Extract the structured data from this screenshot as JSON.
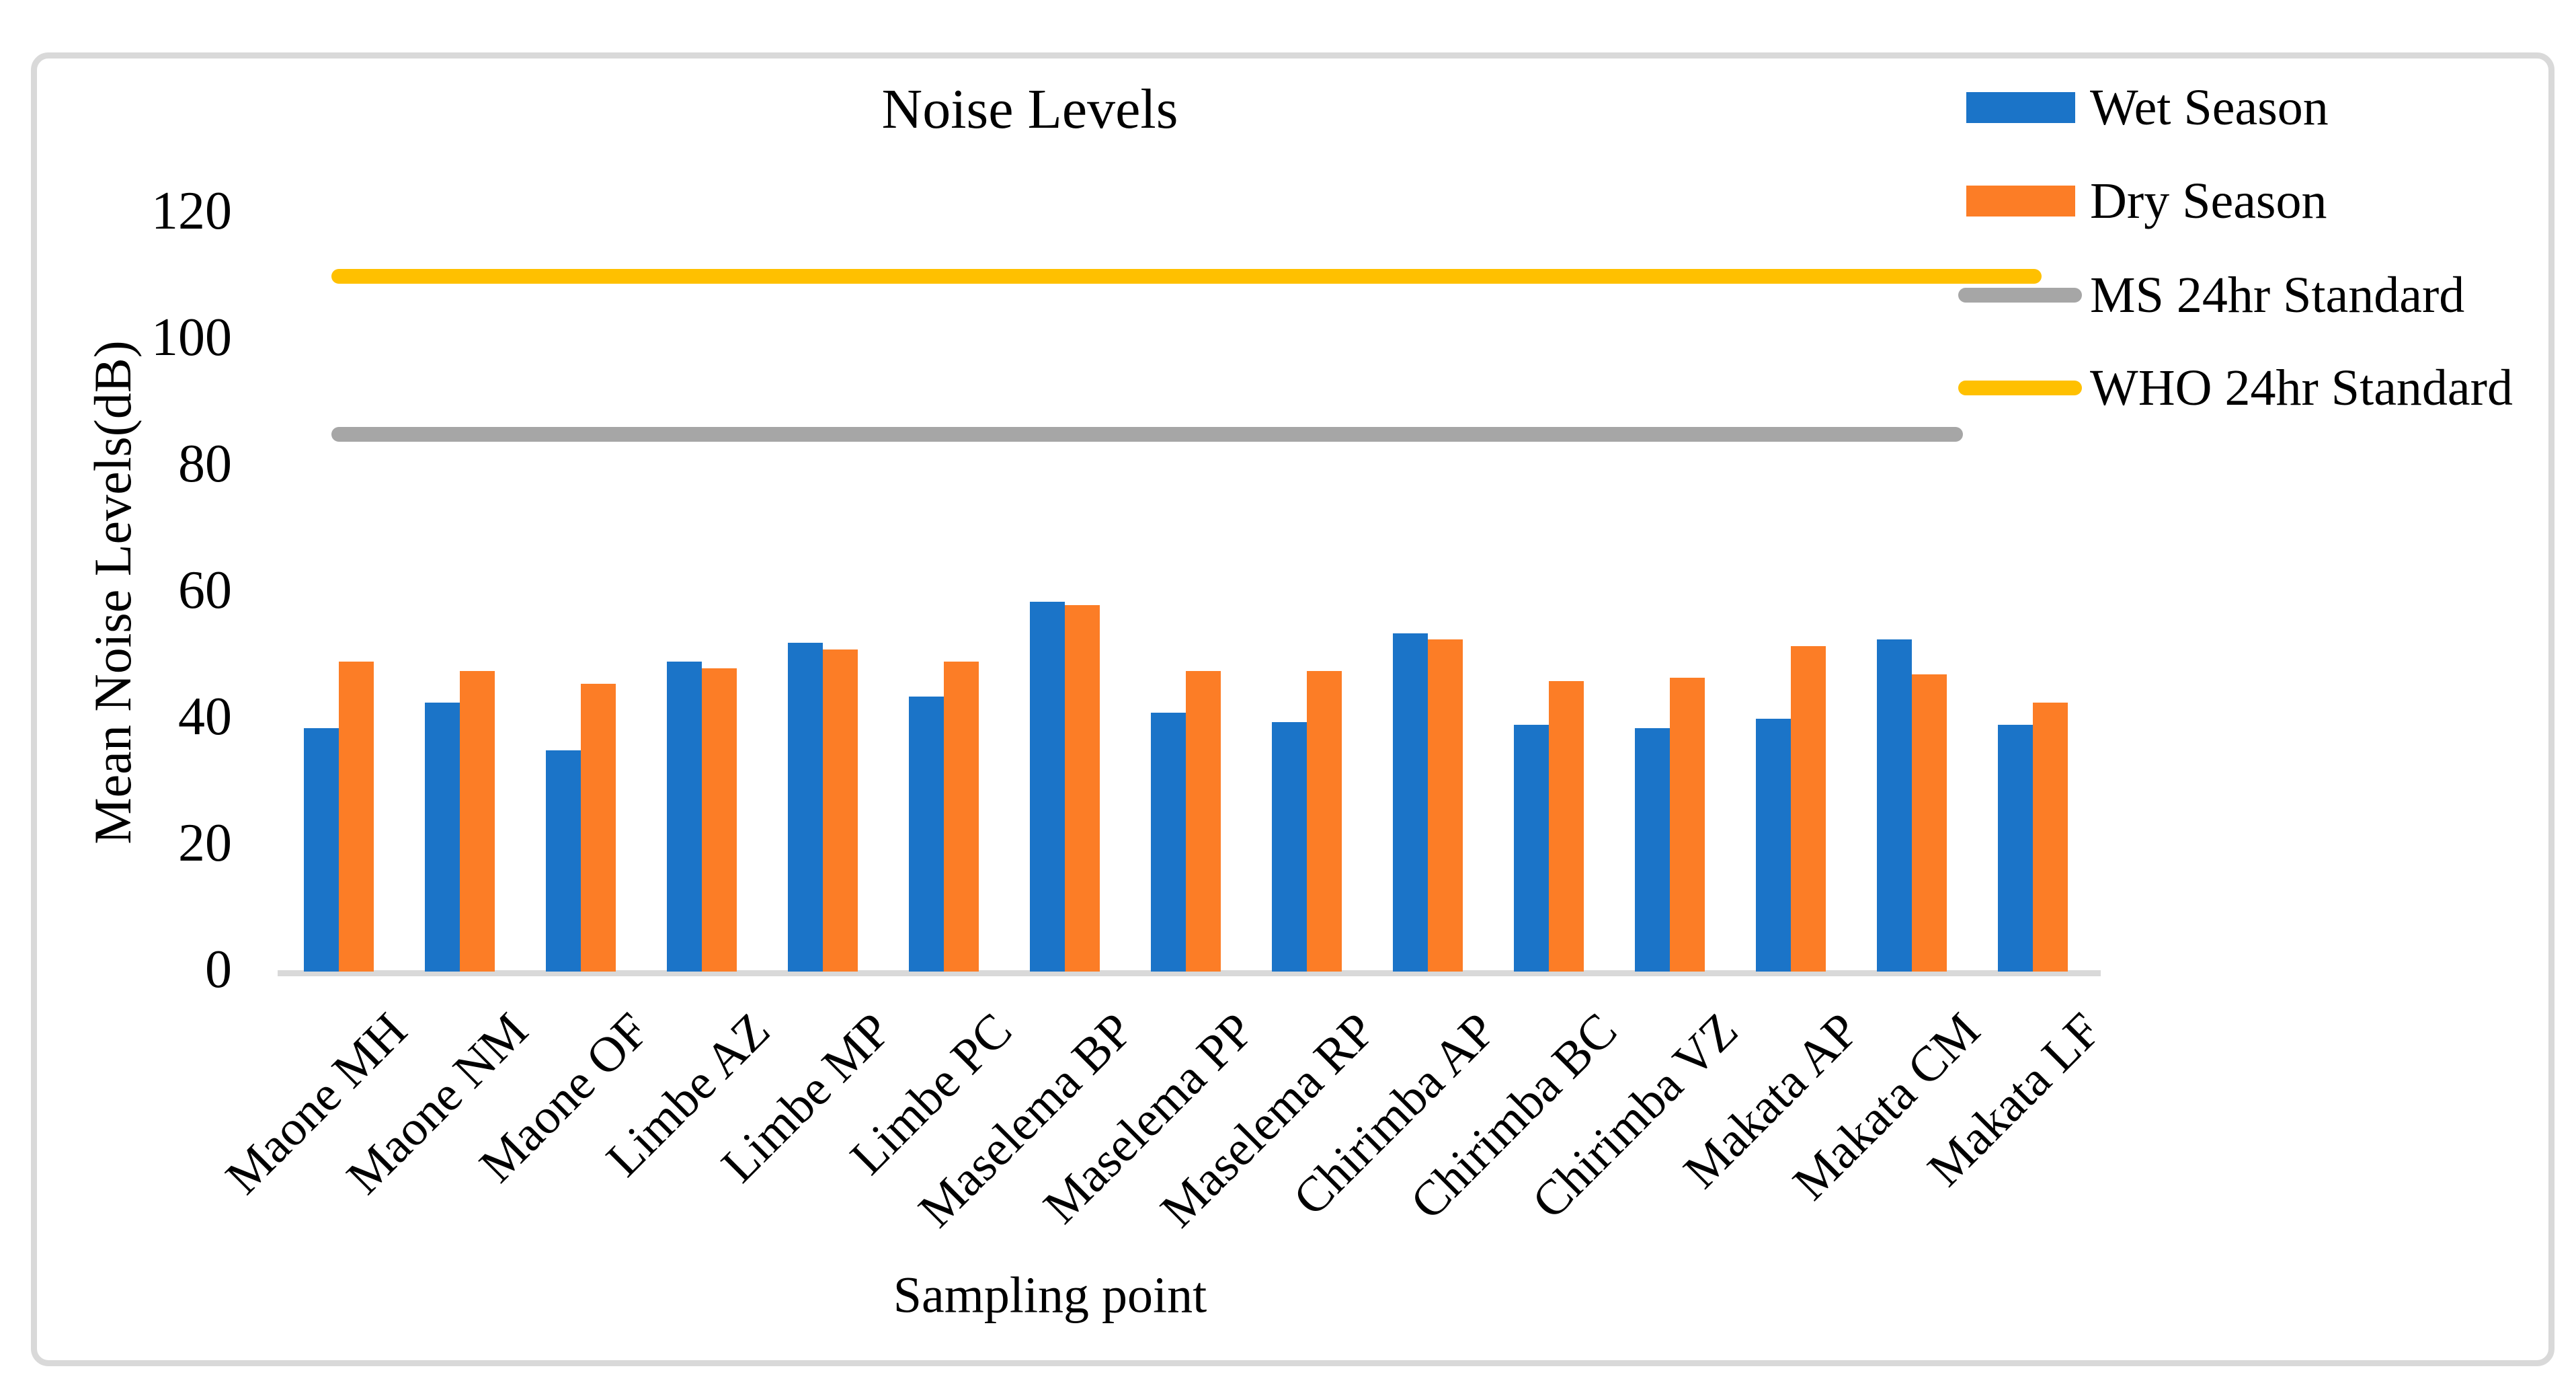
{
  "colors": {
    "wet_season": "#1B74C8",
    "dry_season": "#FC7D26",
    "ms_standard": "#A6A6A6",
    "who_standard": "#FFC000",
    "axis_line": "#D9D9D9",
    "frame_border": "#D9D9D9",
    "text": "#000000",
    "background": "#FFFFFF"
  },
  "chart_data": {
    "type": "bar",
    "title": "Noise Levels",
    "xlabel": "Sampling point",
    "ylabel": "Mean Noise Levels(dB)",
    "ylim": [
      0,
      120
    ],
    "yticks": [
      0,
      20,
      40,
      60,
      80,
      100,
      120
    ],
    "grid": false,
    "legend_position": "top-right",
    "categories": [
      "Maone MH",
      "Maone NM",
      "Maone OF",
      "Limbe AZ",
      "Limbe MP",
      "Limbe PC",
      "Maselema BP",
      "Maselema PP",
      "Maselema RP",
      "Chirimba AP",
      "Chirimba BC",
      "Chirimba VZ",
      "Makata AP",
      "Makata CM",
      "Makata LF"
    ],
    "series": [
      {
        "name": "Wet Season",
        "kind": "bar",
        "color": "#1B74C8",
        "values": [
          38.5,
          42.5,
          35,
          49,
          52,
          43.5,
          58.5,
          41,
          39.5,
          53.5,
          39,
          38.5,
          40,
          52.5,
          39
        ]
      },
      {
        "name": "Dry Season",
        "kind": "bar",
        "color": "#FC7D26",
        "values": [
          49,
          47.5,
          45.5,
          48,
          51,
          49,
          58,
          47.5,
          47.5,
          52.5,
          46,
          46.5,
          51.5,
          47,
          42.5
        ]
      },
      {
        "name": "MS 24hr Standard",
        "kind": "line",
        "color": "#A6A6A6",
        "value": 85
      },
      {
        "name": "WHO 24hr Standard",
        "kind": "line",
        "color": "#FFC000",
        "value": 110
      }
    ]
  }
}
